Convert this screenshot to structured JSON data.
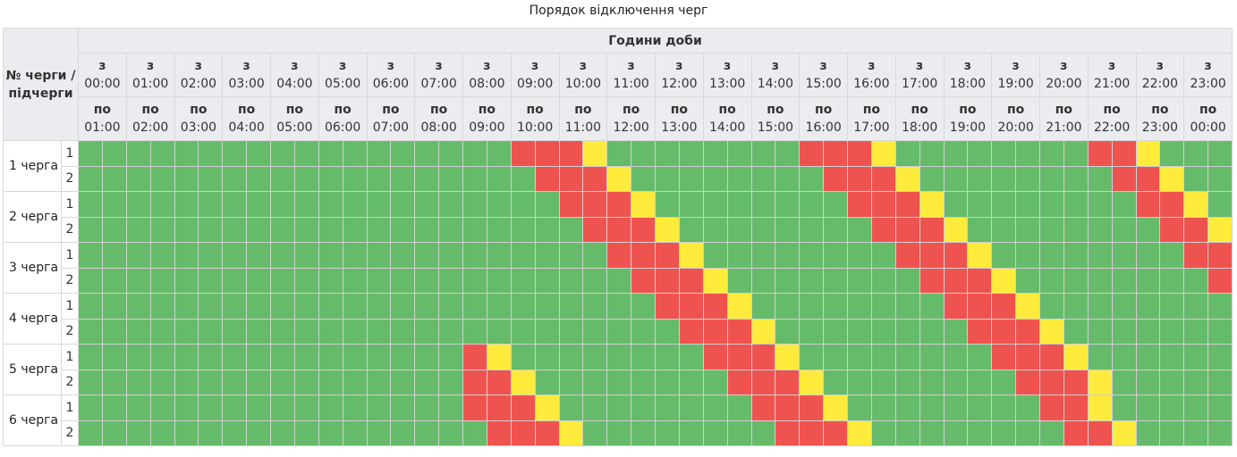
{
  "title": "Порядок відключення черг",
  "header": {
    "corner_label": "№ черги / підчерги",
    "hours_label": "Години доби",
    "from_prefix": "з",
    "to_prefix": "по",
    "hours": [
      {
        "from": "00:00",
        "to": "01:00"
      },
      {
        "from": "01:00",
        "to": "02:00"
      },
      {
        "from": "02:00",
        "to": "03:00"
      },
      {
        "from": "03:00",
        "to": "04:00"
      },
      {
        "from": "04:00",
        "to": "05:00"
      },
      {
        "from": "05:00",
        "to": "06:00"
      },
      {
        "from": "06:00",
        "to": "07:00"
      },
      {
        "from": "07:00",
        "to": "08:00"
      },
      {
        "from": "08:00",
        "to": "09:00"
      },
      {
        "from": "09:00",
        "to": "10:00"
      },
      {
        "from": "10:00",
        "to": "11:00"
      },
      {
        "from": "11:00",
        "to": "12:00"
      },
      {
        "from": "12:00",
        "to": "13:00"
      },
      {
        "from": "13:00",
        "to": "14:00"
      },
      {
        "from": "14:00",
        "to": "15:00"
      },
      {
        "from": "15:00",
        "to": "16:00"
      },
      {
        "from": "16:00",
        "to": "17:00"
      },
      {
        "from": "17:00",
        "to": "18:00"
      },
      {
        "from": "18:00",
        "to": "19:00"
      },
      {
        "from": "19:00",
        "to": "20:00"
      },
      {
        "from": "20:00",
        "to": "21:00"
      },
      {
        "from": "21:00",
        "to": "22:00"
      },
      {
        "from": "22:00",
        "to": "23:00"
      },
      {
        "from": "23:00",
        "to": "00:00"
      }
    ]
  },
  "legend_colors": {
    "G": "#66bb6a",
    "R": "#ef5350",
    "Y": "#ffeb3b"
  },
  "groups": [
    {
      "label": "1 черга",
      "subgroups": [
        {
          "label": "1",
          "slots": "GGGGGGGGGGGGGGGGGGRRRYGGGGGGGGRRRYGGGGGGGGRRYGGG"
        },
        {
          "label": "2",
          "slots": "GGGGGGGGGGGGGGGGGGGRRRYGGGGGGGGRRRYGGGGGGGGRRYGG"
        }
      ]
    },
    {
      "label": "2 черга",
      "subgroups": [
        {
          "label": "1",
          "slots": "GGGGGGGGGGGGGGGGGGGGRRRYGGGGGGGGRRRYGGGGGGGGRRYG"
        },
        {
          "label": "2",
          "slots": "GGGGGGGGGGGGGGGGGGGGGRRRYGGGGGGGGRRRYGGGGGGGGRRY"
        }
      ]
    },
    {
      "label": "3 черга",
      "subgroups": [
        {
          "label": "1",
          "slots": "GGGGGGGGGGGGGGGGGGGGGGRRRYGGGGGGGGRRRYGGGGGGGGRR"
        },
        {
          "label": "2",
          "slots": "GGGGGGGGGGGGGGGGGGGGGGGRRRYGGGGGGGGRRRYGGGGGGGGR"
        }
      ]
    },
    {
      "label": "4 черга",
      "subgroups": [
        {
          "label": "1",
          "slots": "GGGGGGGGGGGGGGGGGGGGGGGGRRRYGGGGGGGGRRRYGGGGGGGG"
        },
        {
          "label": "2",
          "slots": "GGGGGGGGGGGGGGGGGGGGGGGGGRRRYGGGGGGGGRRRYGGGGGGG"
        }
      ]
    },
    {
      "label": "5 черга",
      "subgroups": [
        {
          "label": "1",
          "slots": "GGGGGGGGGGGGGGGGRYGGGGGGGGRRRYGGGGGGGGRRRYGGGGGG"
        },
        {
          "label": "2",
          "slots": "GGGGGGGGGGGGGGGGRRYGGGGGGGGRRRYGGGGGGGGRRRYGGGGG"
        }
      ]
    },
    {
      "label": "6 черга",
      "subgroups": [
        {
          "label": "1",
          "slots": "GGGGGGGGGGGGGGGGRRRYGGGGGGGGRRRYGGGGGGGGRRYGGGGG"
        },
        {
          "label": "2",
          "slots": "GGGGGGGGGGGGGGGGGRRRYGGGGGGGGRRRYGGGGGGGGRRYGGGG"
        }
      ]
    }
  ]
}
